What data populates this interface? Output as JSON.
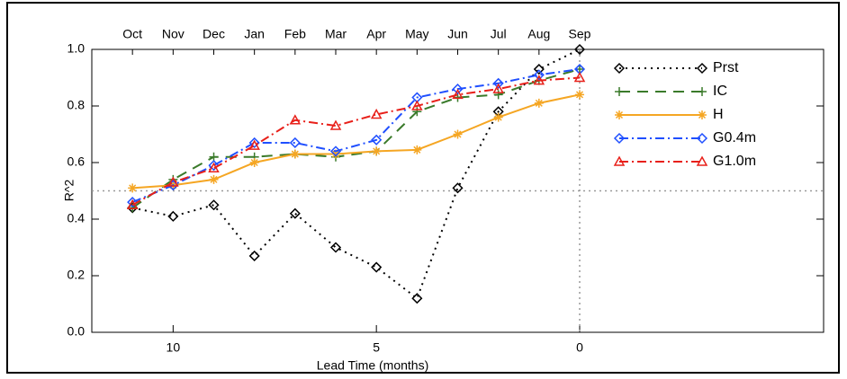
{
  "chart_data": {
    "type": "line",
    "xlabel": "Lead Time (months)",
    "ylabel": "R^2",
    "x": [
      11,
      10,
      9,
      8,
      7,
      6,
      5,
      4,
      3,
      2,
      1,
      0
    ],
    "top_labels": [
      "Oct",
      "Nov",
      "Dec",
      "Jan",
      "Feb",
      "Mar",
      "Apr",
      "May",
      "Jun",
      "Jul",
      "Aug",
      "Sep"
    ],
    "xlim": [
      12,
      -6
    ],
    "xticks": [
      10,
      5,
      0
    ],
    "ylim": [
      0,
      1
    ],
    "yticks": [
      {
        "value": 0,
        "label": "0.0"
      },
      {
        "value": 0.2,
        "label": "0.2"
      },
      {
        "value": 0.4,
        "label": "0.4"
      },
      {
        "value": 0.6,
        "label": "0.6"
      },
      {
        "value": 0.8,
        "label": "0.8"
      },
      {
        "value": 1,
        "label": "1.0"
      }
    ],
    "reference_lines": {
      "y": 0.5,
      "x": 0
    },
    "legend": "upper right",
    "series": [
      {
        "name": "Prst",
        "color": "#000000",
        "dash": "dotted",
        "marker": "diamond",
        "values": [
          0.44,
          0.41,
          0.45,
          0.27,
          0.42,
          0.3,
          0.23,
          0.12,
          0.51,
          0.78,
          0.93,
          1.0
        ]
      },
      {
        "name": "IC",
        "color": "#3a7a2a",
        "dash": "dashed",
        "marker": "plus",
        "values": [
          0.44,
          0.54,
          0.62,
          0.62,
          0.63,
          0.62,
          0.64,
          0.78,
          0.83,
          0.84,
          0.89,
          0.93
        ]
      },
      {
        "name": "H",
        "color": "#f5a623",
        "dash": "solid",
        "marker": "asterisk",
        "values": [
          0.51,
          0.52,
          0.54,
          0.6,
          0.63,
          0.63,
          0.64,
          0.645,
          0.7,
          0.76,
          0.81,
          0.84
        ]
      },
      {
        "name": "G0.4m",
        "color": "#1f4fff",
        "dash": "dashdot",
        "marker": "diamond",
        "values": [
          0.46,
          0.52,
          0.59,
          0.67,
          0.67,
          0.64,
          0.68,
          0.83,
          0.86,
          0.88,
          0.91,
          0.93
        ]
      },
      {
        "name": "G1.0m",
        "color": "#e8201a",
        "dash": "dashdot",
        "marker": "triangle",
        "values": [
          0.45,
          0.53,
          0.58,
          0.66,
          0.75,
          0.73,
          0.77,
          0.8,
          0.84,
          0.86,
          0.89,
          0.9
        ]
      }
    ]
  }
}
